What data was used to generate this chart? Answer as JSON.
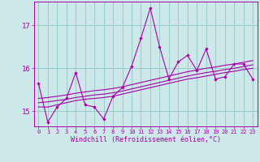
{
  "xlabel": "Windchill (Refroidissement éolien,°C)",
  "x": [
    0,
    1,
    2,
    3,
    4,
    5,
    6,
    7,
    8,
    9,
    10,
    11,
    12,
    13,
    14,
    15,
    16,
    17,
    18,
    19,
    20,
    21,
    22,
    23
  ],
  "line1": [
    15.65,
    14.75,
    15.1,
    15.3,
    15.9,
    15.15,
    15.1,
    14.82,
    15.35,
    15.55,
    16.05,
    16.7,
    17.4,
    16.5,
    15.75,
    16.15,
    16.3,
    15.95,
    16.45,
    15.75,
    15.8,
    16.1,
    16.1,
    15.75
  ],
  "line2": [
    15.1,
    15.1,
    15.15,
    15.2,
    15.25,
    15.28,
    15.3,
    15.32,
    15.35,
    15.4,
    15.45,
    15.5,
    15.55,
    15.6,
    15.65,
    15.7,
    15.75,
    15.78,
    15.82,
    15.86,
    15.9,
    15.93,
    15.97,
    16.0
  ],
  "line3": [
    15.2,
    15.22,
    15.25,
    15.28,
    15.32,
    15.35,
    15.38,
    15.4,
    15.43,
    15.47,
    15.52,
    15.57,
    15.62,
    15.67,
    15.72,
    15.77,
    15.82,
    15.86,
    15.9,
    15.93,
    15.97,
    16.0,
    16.04,
    16.08
  ],
  "line4": [
    15.3,
    15.32,
    15.35,
    15.38,
    15.42,
    15.45,
    15.48,
    15.5,
    15.53,
    15.57,
    15.62,
    15.67,
    15.72,
    15.77,
    15.82,
    15.87,
    15.92,
    15.96,
    16.0,
    16.03,
    16.07,
    16.1,
    16.14,
    16.18
  ],
  "line_color": "#aa00aa",
  "bg_color": "#cce8e8",
  "grid_color": "#99cccc",
  "ylim": [
    14.65,
    17.55
  ],
  "yticks": [
    15,
    16,
    17
  ],
  "xticks": [
    0,
    1,
    2,
    3,
    4,
    5,
    6,
    7,
    8,
    9,
    10,
    11,
    12,
    13,
    14,
    15,
    16,
    17,
    18,
    19,
    20,
    21,
    22,
    23
  ]
}
